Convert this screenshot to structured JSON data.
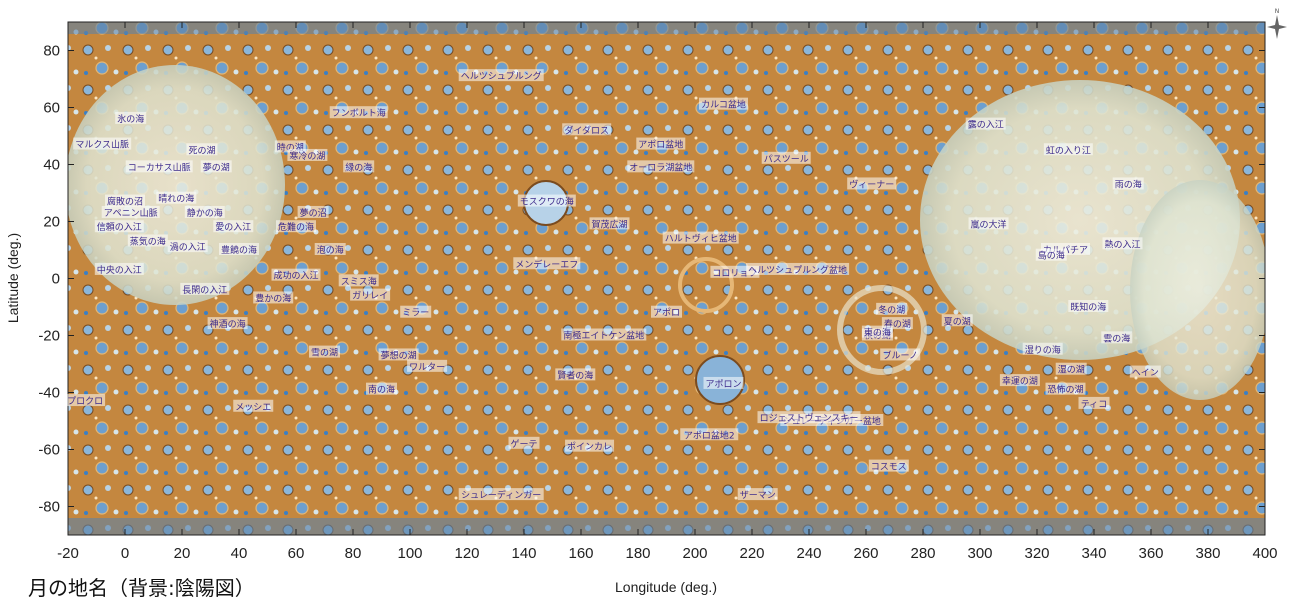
{
  "map_title": "月の地名（背景:陰陽図）",
  "compass_label": "N",
  "axes": {
    "xlabel": "Longitude (deg.)",
    "ylabel": "Latitude (deg.)",
    "xlim": [
      -20,
      400
    ],
    "ylim": [
      -90,
      90
    ],
    "xticks": [
      -20,
      0,
      20,
      40,
      60,
      80,
      100,
      120,
      140,
      160,
      180,
      200,
      220,
      240,
      260,
      280,
      300,
      320,
      340,
      360,
      380,
      400
    ],
    "yticks": [
      80,
      60,
      40,
      20,
      0,
      -20,
      -40,
      -60,
      -80
    ]
  },
  "colors": {
    "highland_orange": "#c8762e",
    "mare_pale": "#e2e6d4",
    "crater_blue": "#3b7fc4",
    "label_text": "#3c2a8c"
  },
  "place_names": [
    {
      "name": "ヘルツシュプルング",
      "lon": 132,
      "lat": 71
    },
    {
      "name": "フンボルト海",
      "lon": 82,
      "lat": 58
    },
    {
      "name": "氷の海",
      "lon": 2,
      "lat": 56
    },
    {
      "name": "マルクス山脈",
      "lon": -8,
      "lat": 47
    },
    {
      "name": "死の湖",
      "lon": 27,
      "lat": 45
    },
    {
      "name": "時の湖",
      "lon": 58,
      "lat": 46
    },
    {
      "name": "寒冷の湖",
      "lon": 64,
      "lat": 43
    },
    {
      "name": "コーカサス山脈",
      "lon": 12,
      "lat": 39
    },
    {
      "name": "夢の湖",
      "lon": 32,
      "lat": 39
    },
    {
      "name": "縁の海",
      "lon": 82,
      "lat": 39
    },
    {
      "name": "ダイダロス",
      "lon": 162,
      "lat": 52
    },
    {
      "name": "アポロ盆地",
      "lon": 188,
      "lat": 47
    },
    {
      "name": "カルコ盆地",
      "lon": 210,
      "lat": 61
    },
    {
      "name": "パスツール",
      "lon": 232,
      "lat": 42
    },
    {
      "name": "オーロラ湖盆地",
      "lon": 188,
      "lat": 39
    },
    {
      "name": "ヴィーナー",
      "lon": 262,
      "lat": 33
    },
    {
      "name": "腐敗の沼",
      "lon": 0,
      "lat": 27
    },
    {
      "name": "晴れの海",
      "lon": 18,
      "lat": 28
    },
    {
      "name": "アペニン山脈",
      "lon": 2,
      "lat": 23
    },
    {
      "name": "静かの海",
      "lon": 28,
      "lat": 23
    },
    {
      "name": "夢の沼",
      "lon": 66,
      "lat": 23
    },
    {
      "name": "信頼の入江",
      "lon": -2,
      "lat": 18
    },
    {
      "name": "愛の入江",
      "lon": 38,
      "lat": 18
    },
    {
      "name": "危難の海",
      "lon": 60,
      "lat": 18
    },
    {
      "name": "蒸気の海",
      "lon": 8,
      "lat": 13
    },
    {
      "name": "渦の入江",
      "lon": 22,
      "lat": 11
    },
    {
      "name": "豊饒の海",
      "lon": 40,
      "lat": 10
    },
    {
      "name": "泡の海",
      "lon": 72,
      "lat": 10
    },
    {
      "name": "モスクワの海",
      "lon": 148,
      "lat": 27
    },
    {
      "name": "賀茂広湖",
      "lon": 170,
      "lat": 19
    },
    {
      "name": "ハルトヴィヒ盆地",
      "lon": 202,
      "lat": 14
    },
    {
      "name": "中央の入江",
      "lon": -2,
      "lat": 3
    },
    {
      "name": "成功の入江",
      "lon": 60,
      "lat": 1
    },
    {
      "name": "スミス海",
      "lon": 82,
      "lat": -1
    },
    {
      "name": "長閑の入江",
      "lon": 28,
      "lat": -4
    },
    {
      "name": "豊かの海",
      "lon": 52,
      "lat": -7
    },
    {
      "name": "メンデレーエフ",
      "lon": 148,
      "lat": 5
    },
    {
      "name": "コロリョフ",
      "lon": 214,
      "lat": 2
    },
    {
      "name": "ヘルツシュプルング盆地",
      "lon": 236,
      "lat": 3
    },
    {
      "name": "アポロ",
      "lon": 190,
      "lat": -12
    },
    {
      "name": "神酒の海",
      "lon": 36,
      "lat": -16
    },
    {
      "name": "南極エイトケン盆地",
      "lon": 168,
      "lat": -20
    },
    {
      "name": "冬の湖",
      "lon": 269,
      "lat": -11
    },
    {
      "name": "春の湖",
      "lon": 271,
      "lat": -16
    },
    {
      "name": "秋の湖",
      "lon": 264,
      "lat": -20
    },
    {
      "name": "夏の湖",
      "lon": 292,
      "lat": -15
    },
    {
      "name": "東の海",
      "lon": 264,
      "lat": -19
    },
    {
      "name": "嵐の大洋",
      "lon": 303,
      "lat": 19
    },
    {
      "name": "露の入江",
      "lon": 302,
      "lat": 54
    },
    {
      "name": "虹の入り江",
      "lon": 331,
      "lat": 45
    },
    {
      "name": "雨の海",
      "lon": 352,
      "lat": 33
    },
    {
      "name": "カルパチア",
      "lon": 330,
      "lat": 10
    },
    {
      "name": "島の海",
      "lon": 325,
      "lat": 8
    },
    {
      "name": "熱の入江",
      "lon": 350,
      "lat": 12
    },
    {
      "name": "既知の海",
      "lon": 338,
      "lat": -10
    },
    {
      "name": "雲の海",
      "lon": 348,
      "lat": -21
    },
    {
      "name": "湿りの海",
      "lon": 322,
      "lat": -25
    },
    {
      "name": "湿の湖",
      "lon": 332,
      "lat": -32
    },
    {
      "name": "幸運の湖",
      "lon": 314,
      "lat": -36
    },
    {
      "name": "恐怖の湖",
      "lon": 330,
      "lat": -39
    },
    {
      "name": "ヘイン",
      "lon": 358,
      "lat": -33
    },
    {
      "name": "プロクロ",
      "lon": -14,
      "lat": -43
    },
    {
      "name": "メッシエ",
      "lon": 45,
      "lat": -45
    },
    {
      "name": "ティコ",
      "lon": 340,
      "lat": -44
    },
    {
      "name": "アポロン",
      "lon": 210,
      "lat": -37
    },
    {
      "name": "賢者の海",
      "lon": 158,
      "lat": -34
    },
    {
      "name": "南の海",
      "lon": 90,
      "lat": -39
    },
    {
      "name": "雪の湖",
      "lon": 70,
      "lat": -26
    },
    {
      "name": "夢想の湖",
      "lon": 96,
      "lat": -27
    },
    {
      "name": "ワルター",
      "lon": 106,
      "lat": -31
    },
    {
      "name": "ミラー",
      "lon": 102,
      "lat": -12
    },
    {
      "name": "ガリレイ",
      "lon": 86,
      "lat": -6
    },
    {
      "name": "ブルーノ",
      "lon": 272,
      "lat": -27
    },
    {
      "name": "シュレーディンガー盆地",
      "lon": 248,
      "lat": -50
    },
    {
      "name": "ロジェストヴェンスキー",
      "lon": 240,
      "lat": -49
    },
    {
      "name": "アポロ盆地2",
      "lon": 205,
      "lat": -55
    },
    {
      "name": "ゲーテ",
      "lon": 140,
      "lat": -58
    },
    {
      "name": "ポインカレ",
      "lon": 163,
      "lat": -59
    },
    {
      "name": "コスモス",
      "lon": 268,
      "lat": -66
    },
    {
      "name": "シュレーディンガー",
      "lon": 132,
      "lat": -76
    },
    {
      "name": "ザーマン",
      "lon": 222,
      "lat": -76
    }
  ]
}
